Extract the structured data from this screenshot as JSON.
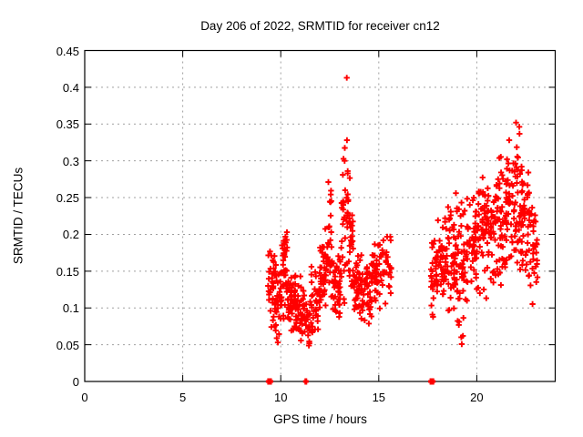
{
  "chart_data": {
    "type": "scatter",
    "title": "Day 206 of 2022, SRMTID for receiver cn12",
    "xlabel": "GPS time / hours",
    "ylabel": "SRMTID / TECUs",
    "xlim": [
      0,
      24
    ],
    "ylim": [
      0,
      0.45
    ],
    "xticks": [
      {
        "v": 0,
        "label": "0"
      },
      {
        "v": 5,
        "label": "5"
      },
      {
        "v": 10,
        "label": "10"
      },
      {
        "v": 15,
        "label": "15"
      },
      {
        "v": 20,
        "label": "20"
      }
    ],
    "yticks": [
      {
        "v": 0,
        "label": "0"
      },
      {
        "v": 0.05,
        "label": "0.05"
      },
      {
        "v": 0.1,
        "label": "0.1"
      },
      {
        "v": 0.15,
        "label": "0.15"
      },
      {
        "v": 0.2,
        "label": "0.2"
      },
      {
        "v": 0.25,
        "label": "0.25"
      },
      {
        "v": 0.3,
        "label": "0.3"
      },
      {
        "v": 0.35,
        "label": "0.35"
      },
      {
        "v": 0.4,
        "label": "0.4"
      },
      {
        "v": 0.45,
        "label": "0.45"
      }
    ],
    "grid": "dashed",
    "grid_color": "#a0a0a0",
    "border_color": "#000000",
    "legend": "none",
    "marker": "plus",
    "marker_color": "#ff0000",
    "series": [
      {
        "name": "SRMTID",
        "description": "two dense bursts of TID activity: ~9.3-15.7h and ~17.7-23.1h GPS time",
        "point_clusters": [
          [
            32,
            9.35,
            9.7,
            0.055,
            0.19
          ],
          [
            38,
            9.7,
            10.05,
            0.05,
            0.17
          ],
          [
            35,
            10.05,
            10.35,
            0.07,
            0.225
          ],
          [
            46,
            10.35,
            10.75,
            0.055,
            0.155
          ],
          [
            40,
            10.75,
            11.2,
            0.03,
            0.15
          ],
          [
            22,
            11.2,
            11.55,
            0.035,
            0.12
          ],
          [
            36,
            11.55,
            12.0,
            0.05,
            0.16
          ],
          [
            38,
            12.0,
            12.35,
            0.08,
            0.21
          ],
          [
            28,
            12.35,
            12.6,
            0.1,
            0.275
          ],
          [
            46,
            12.6,
            13.1,
            0.07,
            0.2
          ],
          [
            34,
            13.1,
            13.45,
            0.09,
            0.33
          ],
          [
            30,
            13.45,
            13.75,
            0.1,
            0.28
          ],
          [
            44,
            13.75,
            14.2,
            0.07,
            0.18
          ],
          [
            38,
            14.2,
            14.65,
            0.065,
            0.17
          ],
          [
            38,
            14.65,
            15.1,
            0.09,
            0.2
          ],
          [
            30,
            15.1,
            15.65,
            0.1,
            0.215
          ],
          [
            34,
            17.65,
            18.0,
            0.085,
            0.2
          ],
          [
            44,
            18.0,
            18.5,
            0.09,
            0.23
          ],
          [
            50,
            18.5,
            19.0,
            0.08,
            0.27
          ],
          [
            46,
            19.0,
            19.5,
            0.05,
            0.27
          ],
          [
            44,
            19.5,
            20.0,
            0.1,
            0.26
          ],
          [
            46,
            20.0,
            20.5,
            0.1,
            0.3
          ],
          [
            46,
            20.5,
            21.0,
            0.12,
            0.29
          ],
          [
            50,
            21.0,
            21.5,
            0.12,
            0.32
          ],
          [
            50,
            21.5,
            22.0,
            0.13,
            0.345
          ],
          [
            34,
            22.0,
            22.3,
            0.14,
            0.355
          ],
          [
            40,
            22.3,
            22.7,
            0.12,
            0.31
          ],
          [
            30,
            22.7,
            23.1,
            0.1,
            0.27
          ]
        ],
        "outliers": [
          [
            13.37,
            0.413
          ],
          [
            13.38,
            0.328
          ],
          [
            22.0,
            0.352
          ]
        ],
        "zero_points": [
          [
            9.38,
            0
          ],
          [
            9.43,
            0
          ],
          [
            9.48,
            0
          ],
          [
            11.28,
            0
          ],
          [
            17.66,
            0
          ],
          [
            17.71,
            0
          ],
          [
            17.76,
            0
          ]
        ]
      }
    ]
  }
}
